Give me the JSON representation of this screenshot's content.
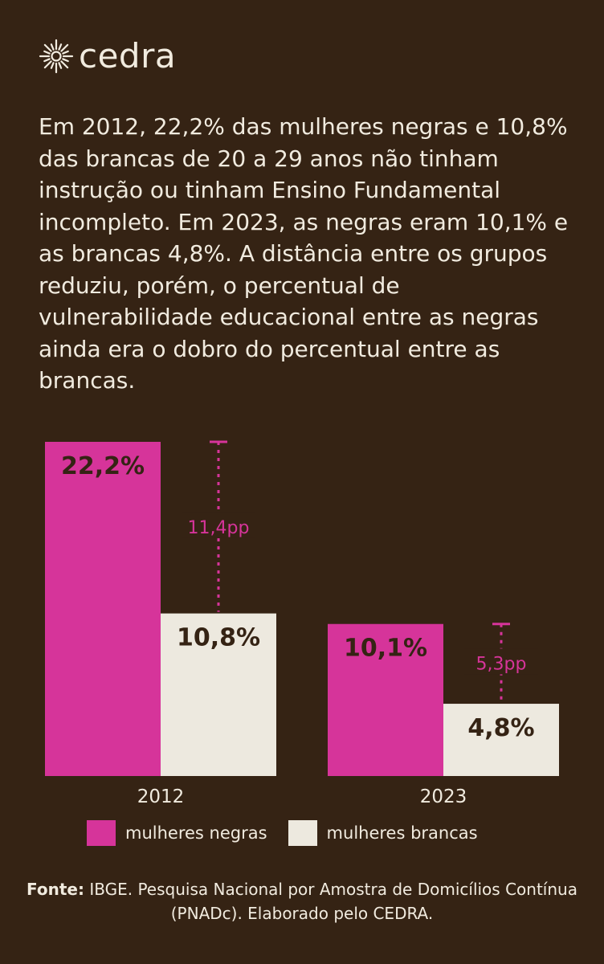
{
  "brand": {
    "name": "cedra"
  },
  "intro_text": "Em 2012, 22,2% das mulheres negras e 10,8% das brancas de 20 a 29 anos não tinham instrução ou tinham Ensino Fundamental incompleto. Em 2023, as negras eram 10,1% e as brancas 4,8%. A distância entre os grupos reduziu, porém, o percentual de vulnerabilidade educacional entre as negras ainda era o dobro do percentual entre as brancas.",
  "chart_data": {
    "type": "bar",
    "title": "",
    "xlabel": "",
    "ylabel": "",
    "ylim": [
      0,
      22.2
    ],
    "grid": false,
    "legend_position": "bottom",
    "categories": [
      "2012",
      "2023"
    ],
    "series": [
      {
        "name": "mulheres negras",
        "color": "#d6349a",
        "values": [
          22.2,
          10.1
        ],
        "labels": [
          "22,2%",
          "10,1%"
        ]
      },
      {
        "name": "mulheres brancas",
        "color": "#ede9df",
        "values": [
          10.8,
          4.8
        ],
        "labels": [
          "10,8%",
          "4,8%"
        ]
      }
    ],
    "annotations": [
      {
        "category": "2012",
        "from": 10.8,
        "to": 22.2,
        "label": "11,4pp"
      },
      {
        "category": "2023",
        "from": 4.8,
        "to": 10.1,
        "label": "5,3pp"
      }
    ]
  },
  "legend": {
    "items": [
      {
        "label": "mulheres negras",
        "color": "#d6349a"
      },
      {
        "label": "mulheres brancas",
        "color": "#ede9df"
      }
    ]
  },
  "source": {
    "label": "Fonte:",
    "text": " IBGE. Pesquisa Nacional por Amostra de Domicílios Contínua (PNADc). Elaborado pelo CEDRA."
  },
  "colors": {
    "background": "#352314",
    "accent": "#d6349a",
    "light": "#ede9df",
    "label_dark": "#352314"
  }
}
